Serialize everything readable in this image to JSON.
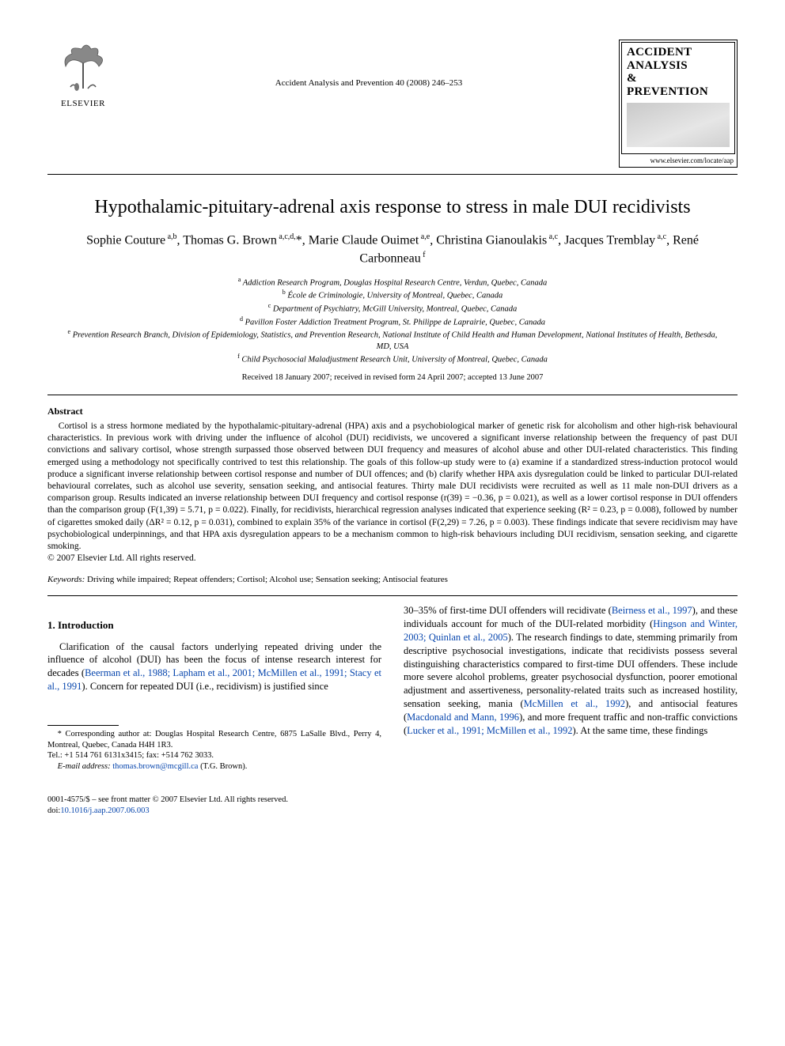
{
  "publisher": {
    "name": "ELSEVIER"
  },
  "citation": "Accident Analysis and Prevention 40 (2008) 246–253",
  "journal_box": {
    "title_l1": "ACCIDENT",
    "title_l2": "ANALYSIS",
    "title_l3": "&",
    "title_l4": "PREVENTION",
    "url": "www.elsevier.com/locate/aap"
  },
  "title": "Hypothalamic-pituitary-adrenal axis response to stress in male DUI recidivists",
  "authors_html": "Sophie Couture<sup> a,b</sup>, Thomas G. Brown<sup> a,c,d,</sup>*, Marie Claude Ouimet<sup> a,e</sup>, Christina Gianoulakis<sup> a,c</sup>, Jacques Tremblay<sup> a,c</sup>, René Carbonneau<sup> f</sup>",
  "affiliations": [
    "a Addiction Research Program, Douglas Hospital Research Centre, Verdun, Quebec, Canada",
    "b École de Criminologie, University of Montreal, Quebec, Canada",
    "c Department of Psychiatry, McGill University, Montreal, Quebec, Canada",
    "d Pavillon Foster Addiction Treatment Program, St. Philippe de Laprairie, Quebec, Canada",
    "e Prevention Research Branch, Division of Epidemiology, Statistics, and Prevention Research, National Institute of Child Health and Human Development, National Institutes of Health, Bethesda, MD, USA",
    "f Child Psychosocial Maladjustment Research Unit, University of Montreal, Quebec, Canada"
  ],
  "received": "Received 18 January 2007; received in revised form 24 April 2007; accepted 13 June 2007",
  "abstract": {
    "heading": "Abstract",
    "body": "Cortisol is a stress hormone mediated by the hypothalamic-pituitary-adrenal (HPA) axis and a psychobiological marker of genetic risk for alcoholism and other high-risk behavioural characteristics. In previous work with driving under the influence of alcohol (DUI) recidivists, we uncovered a significant inverse relationship between the frequency of past DUI convictions and salivary cortisol, whose strength surpassed those observed between DUI frequency and measures of alcohol abuse and other DUI-related characteristics. This finding emerged using a methodology not specifically contrived to test this relationship. The goals of this follow-up study were to (a) examine if a standardized stress-induction protocol would produce a significant inverse relationship between cortisol response and number of DUI offences; and (b) clarify whether HPA axis dysregulation could be linked to particular DUI-related behavioural correlates, such as alcohol use severity, sensation seeking, and antisocial features. Thirty male DUI recidivists were recruited as well as 11 male non-DUI drivers as a comparison group. Results indicated an inverse relationship between DUI frequency and cortisol response (r(39) = −0.36, p = 0.021), as well as a lower cortisol response in DUI offenders than the comparison group (F(1,39) = 5.71, p = 0.022). Finally, for recidivists, hierarchical regression analyses indicated that experience seeking (R² = 0.23, p = 0.008), followed by number of cigarettes smoked daily (ΔR² = 0.12, p = 0.031), combined to explain 35% of the variance in cortisol (F(2,29) = 7.26, p = 0.003). These findings indicate that severe recidivism may have psychobiological underpinnings, and that HPA axis dysregulation appears to be a mechanism common to high-risk behaviours including DUI recidivism, sensation seeking, and cigarette smoking.",
    "copyright": "© 2007 Elsevier Ltd. All rights reserved."
  },
  "keywords": {
    "label": "Keywords:",
    "text": "Driving while impaired; Repeat offenders; Cortisol; Alcohol use; Sensation seeking; Antisocial features"
  },
  "intro": {
    "heading": "1.  Introduction",
    "col1_pre": "Clarification of the causal factors underlying repeated driving under the influence of alcohol (DUI) has been the focus of intense research interest for decades (",
    "col1_ref1": "Beerman et al., 1988; Lapham et al., 2001; McMillen et al., 1991; Stacy et al., 1991",
    "col1_post": "). Concern for repeated DUI (i.e., recidivism) is justified since",
    "col2_a": "30–35% of first-time DUI offenders will recidivate (",
    "col2_ref1": "Beirness et al., 1997",
    "col2_b": "), and these individuals account for much of the DUI-related morbidity (",
    "col2_ref2": "Hingson and Winter, 2003; Quinlan et al., 2005",
    "col2_c": "). The research findings to date, stemming primarily from descriptive psychosocial investigations, indicate that recidivists possess several distinguishing characteristics compared to first-time DUI offenders. These include more severe alcohol problems, greater psychosocial dysfunction, poorer emotional adjustment and assertiveness, personality-related traits such as increased hostility, sensation seeking, mania (",
    "col2_ref3": "McMillen et al., 1992",
    "col2_d": "), and antisocial features (",
    "col2_ref4": "Macdonald and Mann, 1996",
    "col2_e": "), and more frequent traffic and non-traffic convictions (",
    "col2_ref5": "Lucker et al., 1991; McMillen et al., 1992",
    "col2_f": "). At the same time, these findings"
  },
  "footnotes": {
    "corr": "* Corresponding author at: Douglas Hospital Research Centre, 6875 LaSalle Blvd., Perry 4, Montreal, Quebec, Canada H4H 1R3.",
    "tel": "Tel.: +1 514 761 6131x3415; fax: +514 762 3033.",
    "email_label": "E-mail address:",
    "email": "thomas.brown@mcgill.ca",
    "email_who": "(T.G. Brown)."
  },
  "footer": {
    "line1": "0001-4575/$ – see front matter © 2007 Elsevier Ltd. All rights reserved.",
    "doi_label": "doi:",
    "doi": "10.1016/j.aap.2007.06.003"
  },
  "colors": {
    "link": "#0645ad",
    "text": "#000000",
    "bg": "#ffffff"
  }
}
